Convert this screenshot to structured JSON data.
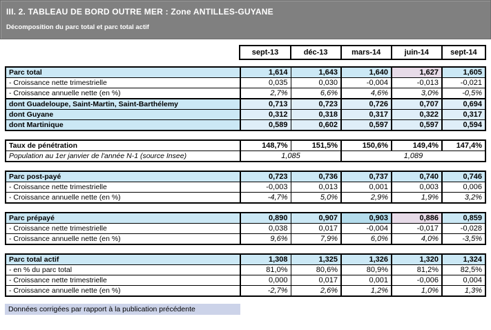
{
  "header": {
    "title": "III. 2. TABLEAU DE BORD OUTRE MER : Zone ANTILLES-GUYANE",
    "subtitle": "Décomposition du parc total et parc total actif"
  },
  "columns": [
    "sept-13",
    "déc-13",
    "mars-14",
    "juin-14",
    "sept-14"
  ],
  "colors": {
    "titlebar_bg": "#808080",
    "section_blue": "#cbe8f5",
    "dont_blue": "#dfeef8",
    "highlight_pink": "#e7dbe8",
    "highlight_blue": "#b4dcec",
    "footnote_bg": "#ccd3e9",
    "border": "#000000",
    "title_text": "#ffffff"
  },
  "sections": [
    {
      "id": "parc-total",
      "rows": [
        {
          "label": "Parc total",
          "style": "section-head",
          "values": [
            "1,614",
            "1,643",
            "1,640",
            "1,627",
            "1,605"
          ],
          "highlights": {
            "3": "pink"
          }
        },
        {
          "label": "- Croissance nette trimestrielle",
          "style": "metric",
          "values": [
            "0,035",
            "0,030",
            "-0,004",
            "-0,013",
            "-0,021"
          ]
        },
        {
          "label": "- Croissance annuelle nette (en %)",
          "style": "metric-italic",
          "values": [
            "2,7%",
            "6,6%",
            "4,6%",
            "3,0%",
            "-0,5%"
          ]
        },
        {
          "label": "dont Guadeloupe, Saint-Martin, Saint-Barthélemy",
          "style": "dont",
          "separator": true,
          "values": [
            "0,713",
            "0,723",
            "0,726",
            "0,707",
            "0,694"
          ]
        },
        {
          "label": "dont Guyane",
          "style": "dont",
          "values": [
            "0,312",
            "0,318",
            "0,317",
            "0,322",
            "0,317"
          ]
        },
        {
          "label": "dont Martinique",
          "style": "dont",
          "values": [
            "0,589",
            "0,602",
            "0,597",
            "0,597",
            "0,594"
          ]
        }
      ]
    },
    {
      "id": "taux-penetration",
      "rows": [
        {
          "label": "Taux de pénétration",
          "style": "penetration",
          "values": [
            "148,7%",
            "151,5%",
            "150,6%",
            "149,4%",
            "147,4%"
          ]
        },
        {
          "label": "Population au 1er janvier de l'année N-1 (source Insee)",
          "style": "population",
          "values": [
            "1,085",
            "1,089"
          ],
          "spans": [
            2,
            3
          ]
        }
      ]
    },
    {
      "id": "parc-post-paye",
      "rows": [
        {
          "label": "Parc post-payé",
          "style": "section-head",
          "values": [
            "0,723",
            "0,736",
            "0,737",
            "0,740",
            "0,746"
          ]
        },
        {
          "label": "- Croissance nette trimestrielle",
          "style": "metric",
          "values": [
            "-0,003",
            "0,013",
            "0,001",
            "0,003",
            "0,006"
          ]
        },
        {
          "label": "- Croissance annuelle nette (en %)",
          "style": "metric-italic",
          "values": [
            "-4,7%",
            "5,0%",
            "2,9%",
            "1,9%",
            "3,2%"
          ]
        }
      ]
    },
    {
      "id": "parc-prepaye",
      "rows": [
        {
          "label": "Parc prépayé",
          "style": "section-head",
          "values": [
            "0,890",
            "0,907",
            "0,903",
            "0,886",
            "0,859"
          ],
          "highlights": {
            "2": "blue",
            "3": "pink"
          }
        },
        {
          "label": "- Croissance nette trimestrielle",
          "style": "metric",
          "values": [
            "0,038",
            "0,017",
            "-0,004",
            "-0,017",
            "-0,028"
          ]
        },
        {
          "label": "- Croissance annuelle nette (en %)",
          "style": "metric-italic",
          "values": [
            "9,6%",
            "7,9%",
            "6,0%",
            "4,0%",
            "-3,5%"
          ]
        }
      ]
    },
    {
      "id": "parc-total-actif",
      "rows": [
        {
          "label": "Parc total actif",
          "style": "section-head",
          "values": [
            "1,308",
            "1,325",
            "1,326",
            "1,320",
            "1,324"
          ]
        },
        {
          "label": "- en % du parc total",
          "style": "metric",
          "values": [
            "81,0%",
            "80,6%",
            "80,9%",
            "81,2%",
            "82,5%"
          ]
        },
        {
          "label": "- Croissance nette trimestrielle",
          "style": "metric",
          "values": [
            "0,000",
            "0,017",
            "0,001",
            "-0,006",
            "0,004"
          ]
        },
        {
          "label": "- Croissance annuelle nette (en %)",
          "style": "metric-italic",
          "values": [
            "-2,7%",
            "2,6%",
            "1,2%",
            "1,0%",
            "1,3%"
          ]
        }
      ]
    }
  ],
  "footer_note": "Données corrigées par rapport à la publication précédente"
}
